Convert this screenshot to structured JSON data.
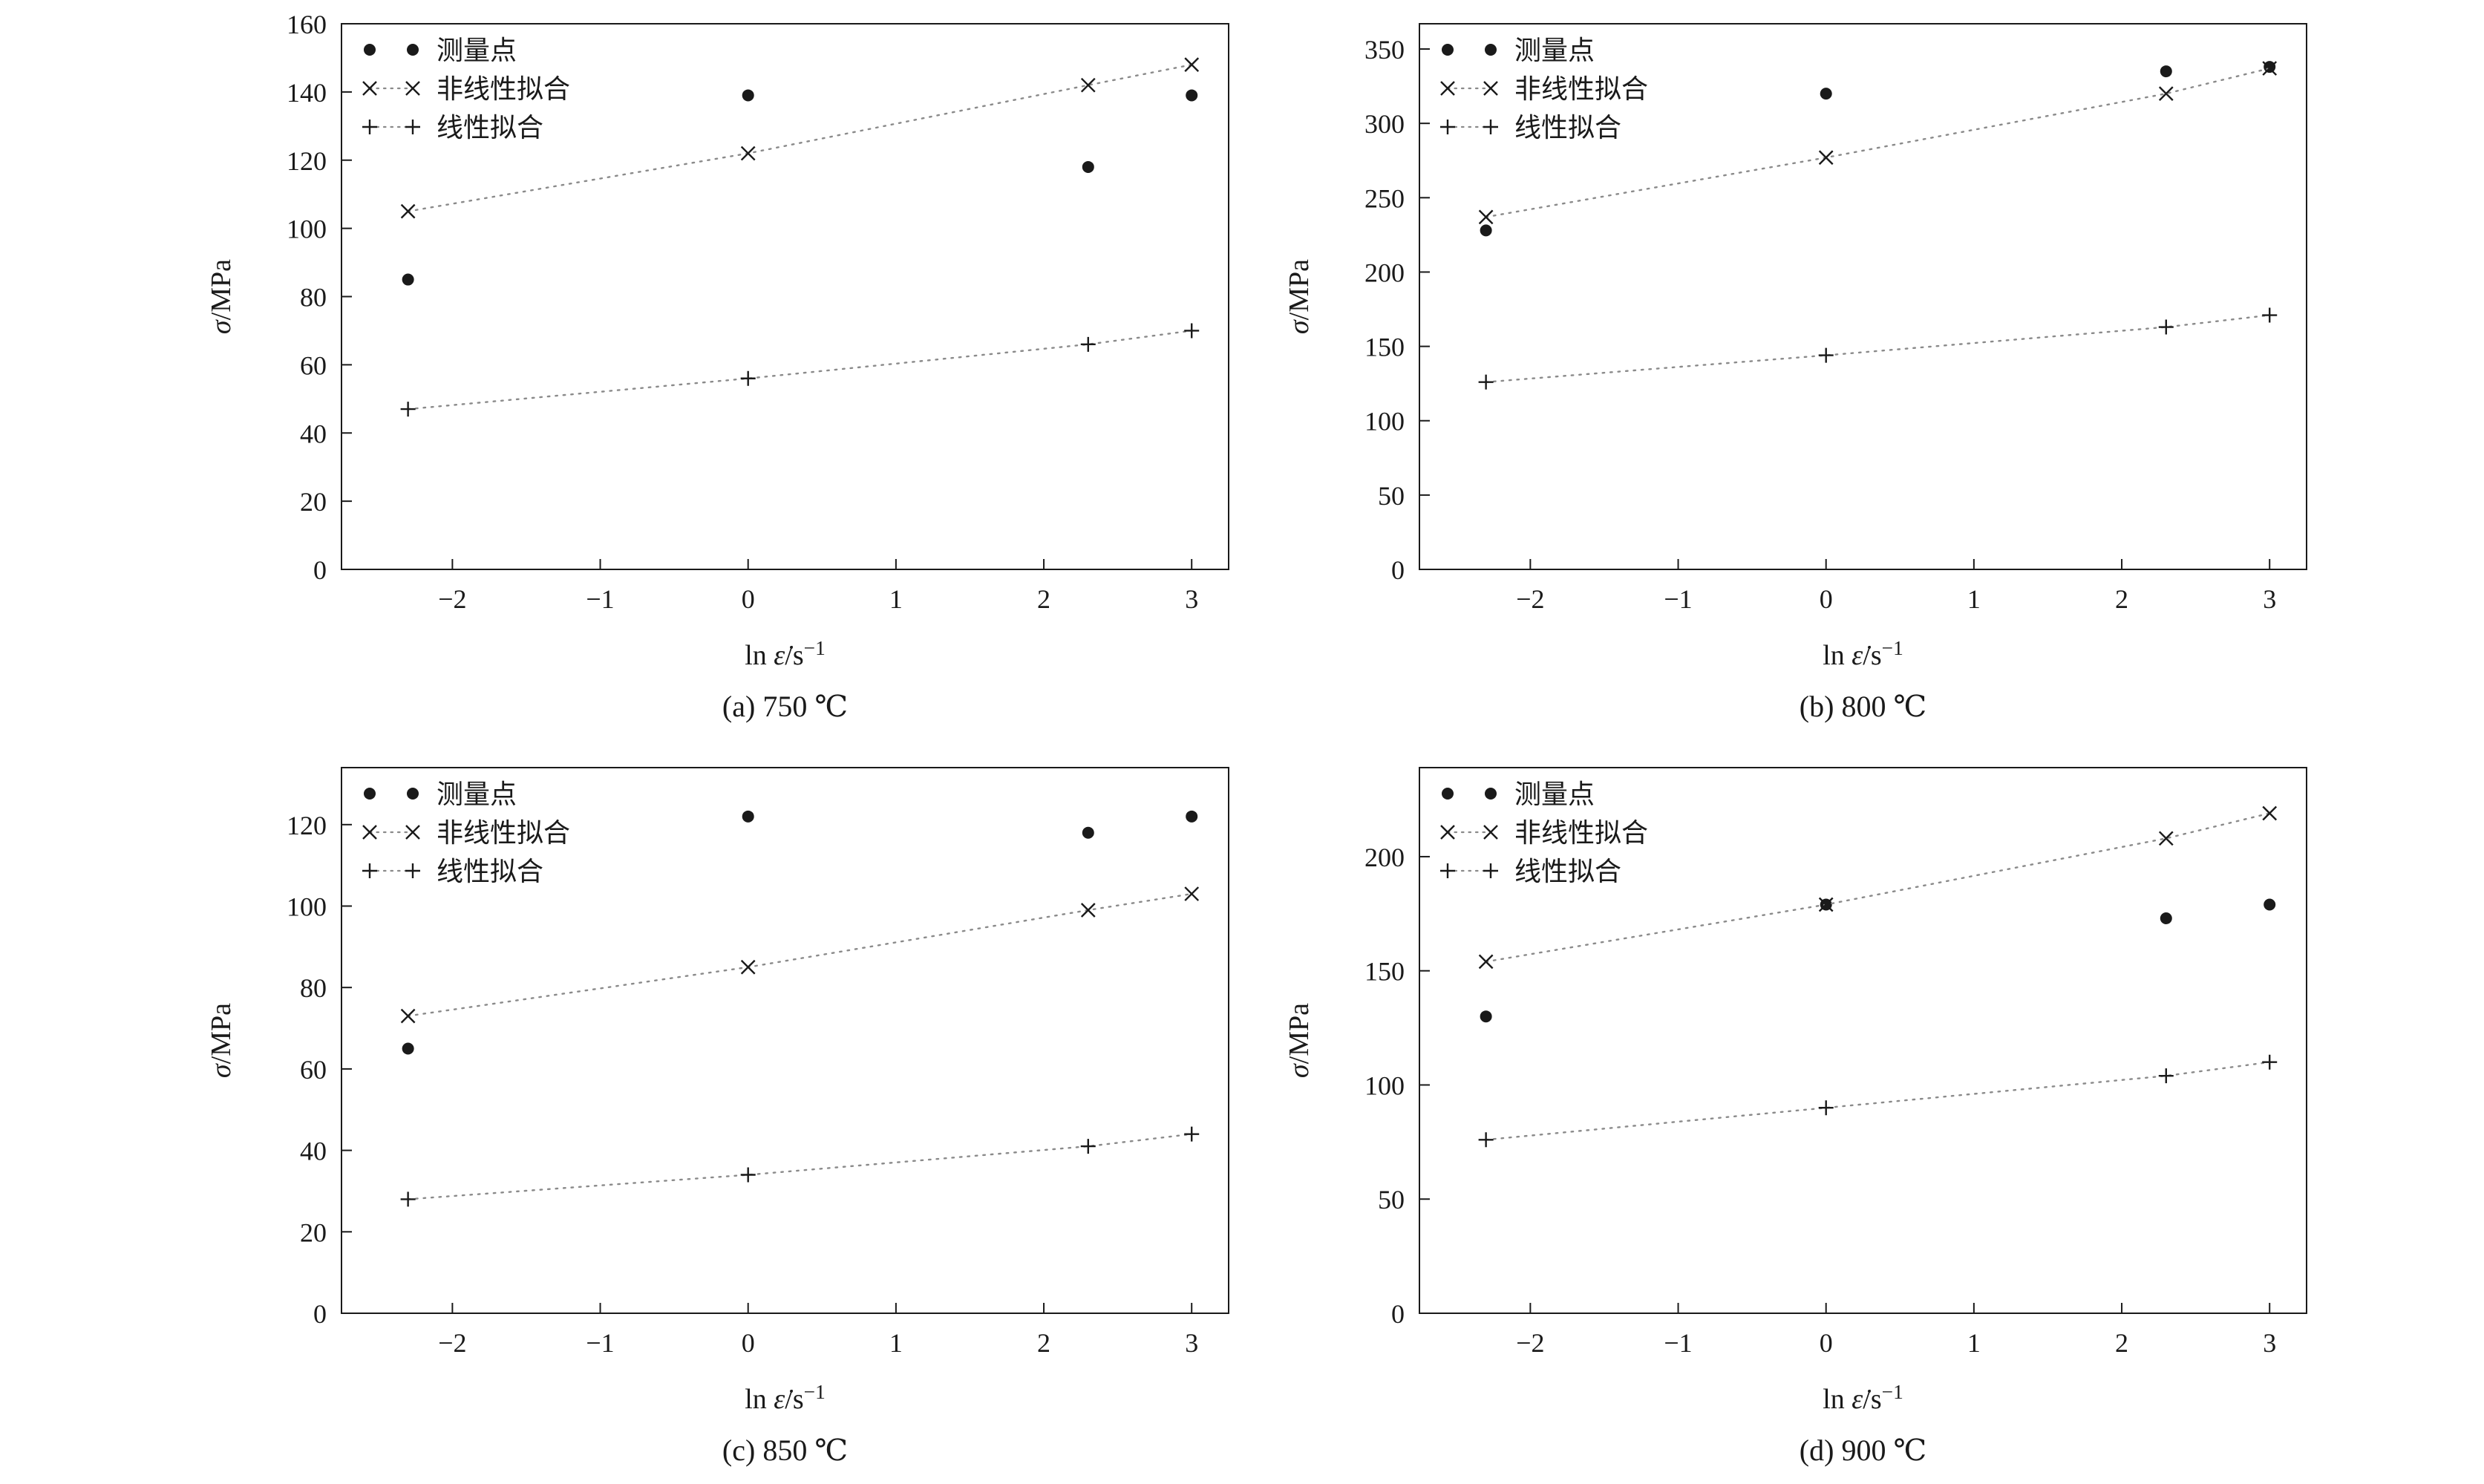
{
  "figure": {
    "background": "#ffffff",
    "ink": "#1a1a1a",
    "fit_line_color": "#8a8a8a"
  },
  "legend": {
    "measured": "测量点",
    "nonlinear_fit": "非线性拟合",
    "linear_fit": "线性拟合"
  },
  "chart_data": [
    {
      "id": "a",
      "type": "scatter",
      "caption": "(a) 750 ℃",
      "xlabel": "ln ε̇/s⁻¹",
      "ylabel": "σ/MPa",
      "xlim": [
        -2.75,
        3.25
      ],
      "ylim": [
        0,
        160
      ],
      "xticks": [
        -2,
        -1,
        0,
        1,
        2,
        3
      ],
      "yticks": [
        0,
        20,
        40,
        60,
        80,
        100,
        120,
        140,
        160
      ],
      "grid": false,
      "legend_position": "top-left",
      "x": [
        -2.3,
        0,
        2.3,
        3
      ],
      "series": [
        {
          "name": "测量点",
          "marker": "dot",
          "line": "none",
          "values": [
            85,
            139,
            118,
            139
          ]
        },
        {
          "name": "非线性拟合",
          "marker": "x",
          "line": "dotted",
          "values": [
            105,
            122,
            142,
            148
          ]
        },
        {
          "name": "线性拟合",
          "marker": "plus",
          "line": "dotted",
          "values": [
            47,
            56,
            66,
            70
          ]
        }
      ]
    },
    {
      "id": "b",
      "type": "scatter",
      "caption": "(b) 800 ℃",
      "xlabel": "ln ε̇/s⁻¹",
      "ylabel": "σ/MPa",
      "xlim": [
        -2.75,
        3.25
      ],
      "ylim": [
        0,
        367
      ],
      "xticks": [
        -2,
        -1,
        0,
        1,
        2,
        3
      ],
      "yticks": [
        0,
        50,
        100,
        150,
        200,
        250,
        300,
        350
      ],
      "grid": false,
      "legend_position": "top-left",
      "x": [
        -2.3,
        0,
        2.3,
        3
      ],
      "series": [
        {
          "name": "测量点",
          "marker": "dot",
          "line": "none",
          "values": [
            228,
            320,
            335,
            338
          ]
        },
        {
          "name": "非线性拟合",
          "marker": "x",
          "line": "dotted",
          "values": [
            237,
            277,
            320,
            337
          ]
        },
        {
          "name": "线性拟合",
          "marker": "plus",
          "line": "dotted",
          "values": [
            126,
            144,
            163,
            171
          ]
        }
      ]
    },
    {
      "id": "c",
      "type": "scatter",
      "caption": "(c) 850 ℃",
      "xlabel": "ln ε̇/s⁻¹",
      "ylabel": "σ/MPa",
      "xlim": [
        -2.75,
        3.25
      ],
      "ylim": [
        0,
        134
      ],
      "xticks": [
        -2,
        -1,
        0,
        1,
        2,
        3
      ],
      "yticks": [
        0,
        20,
        40,
        60,
        80,
        100,
        120
      ],
      "grid": false,
      "legend_position": "top-left",
      "x": [
        -2.3,
        0,
        2.3,
        3
      ],
      "series": [
        {
          "name": "测量点",
          "marker": "dot",
          "line": "none",
          "values": [
            65,
            122,
            118,
            122
          ]
        },
        {
          "name": "非线性拟合",
          "marker": "x",
          "line": "dotted",
          "values": [
            73,
            85,
            99,
            103
          ]
        },
        {
          "name": "线性拟合",
          "marker": "plus",
          "line": "dotted",
          "values": [
            28,
            34,
            41,
            44
          ]
        }
      ]
    },
    {
      "id": "d",
      "type": "scatter",
      "caption": "(d) 900 ℃",
      "xlabel": "ln ε̇/s⁻¹",
      "ylabel": "σ/MPa",
      "xlim": [
        -2.75,
        3.25
      ],
      "ylim": [
        0,
        239
      ],
      "xticks": [
        -2,
        -1,
        0,
        1,
        2,
        3
      ],
      "yticks": [
        0,
        50,
        100,
        150,
        200
      ],
      "grid": false,
      "legend_position": "top-left",
      "x": [
        -2.3,
        0,
        2.3,
        3
      ],
      "series": [
        {
          "name": "测量点",
          "marker": "dot",
          "line": "none",
          "values": [
            130,
            179,
            173,
            179
          ]
        },
        {
          "name": "非线性拟合",
          "marker": "x",
          "line": "dotted",
          "values": [
            154,
            179,
            208,
            219
          ]
        },
        {
          "name": "线性拟合",
          "marker": "plus",
          "line": "dotted",
          "values": [
            76,
            90,
            104,
            110
          ]
        }
      ]
    }
  ]
}
